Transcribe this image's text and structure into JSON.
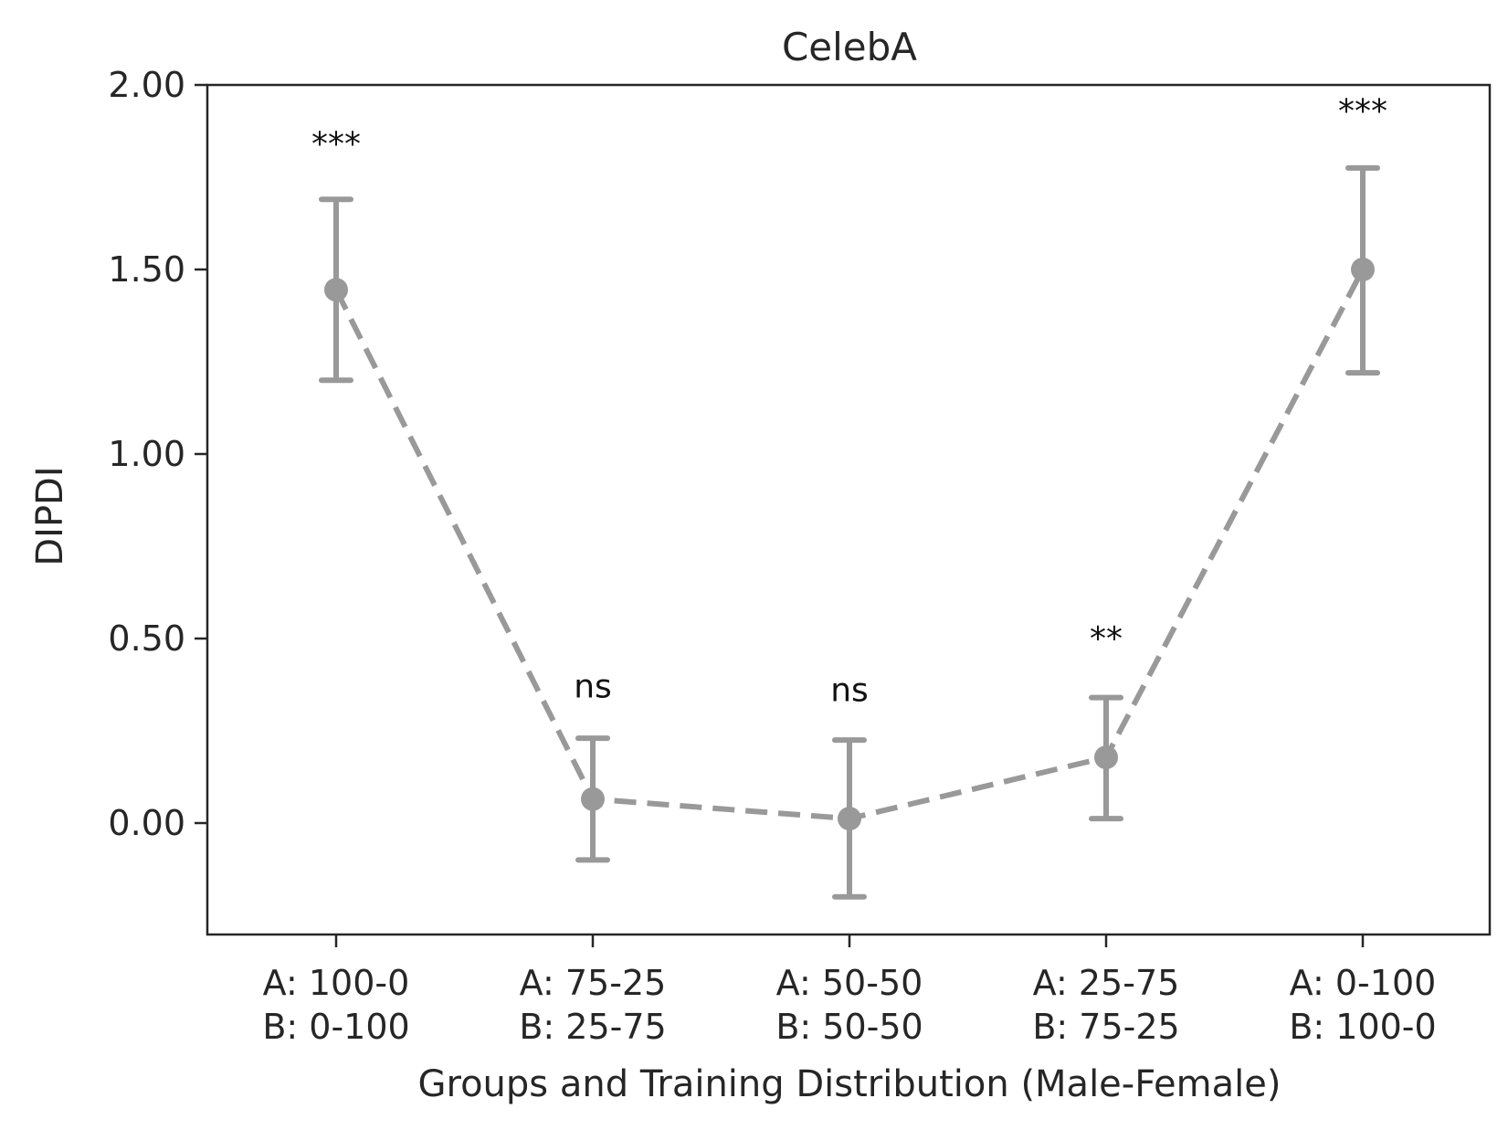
{
  "chart_data": {
    "type": "line",
    "title": "CelebA",
    "xlabel": "Groups and Training Distribution (Male-Female)",
    "ylabel": "DIPDI",
    "ylim": [
      -0.3,
      2.0
    ],
    "yticks": [
      "0.00",
      "0.50",
      "1.00",
      "1.50",
      "2.00"
    ],
    "ytick_values": [
      0.0,
      0.5,
      1.0,
      1.5,
      2.0
    ],
    "categories": [
      [
        "A: 100-0",
        "B: 0-100"
      ],
      [
        "A: 75-25",
        "B: 25-75"
      ],
      [
        "A: 50-50",
        "B: 50-50"
      ],
      [
        "A: 25-75",
        "B: 75-25"
      ],
      [
        "A: 0-100",
        "B: 100-0"
      ]
    ],
    "series": [
      {
        "values": [
          1.445,
          0.065,
          0.012,
          0.178,
          1.5
        ],
        "error_low": [
          1.2,
          -0.1,
          -0.2,
          0.012,
          1.22
        ],
        "error_high": [
          1.69,
          0.23,
          0.225,
          0.34,
          1.775
        ],
        "annotations": [
          "***",
          "ns",
          "ns",
          "**",
          "***"
        ],
        "annotation_y": [
          1.84,
          0.37,
          0.36,
          0.5,
          1.93
        ],
        "color": "#999999",
        "linestyle": "dashed"
      }
    ],
    "grid": false
  }
}
